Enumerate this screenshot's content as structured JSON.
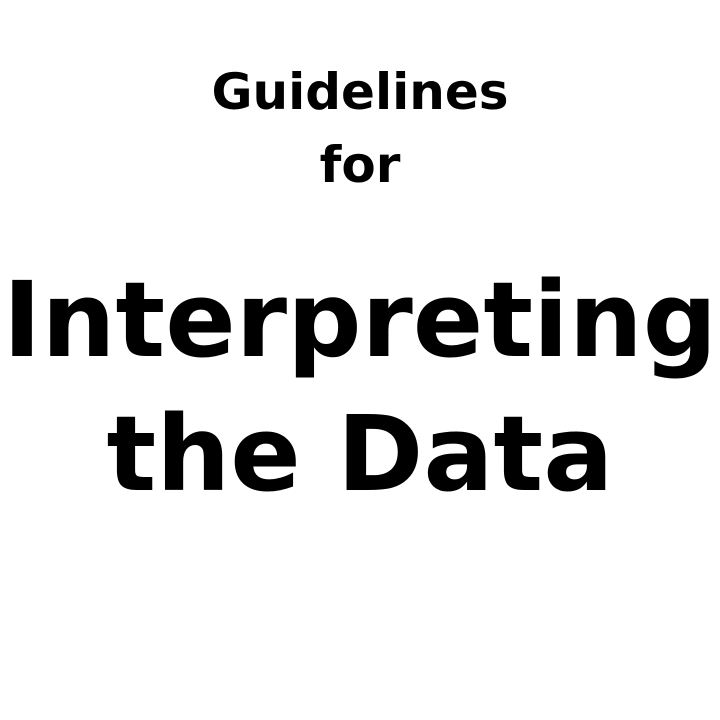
{
  "heading": {
    "subtitle_line_1": "Guidelines",
    "subtitle_line_2": "for",
    "title_line_1": "Interpreting",
    "title_line_2": "the Data"
  },
  "colors": {
    "background": "#ffffff",
    "text": "#000000"
  }
}
